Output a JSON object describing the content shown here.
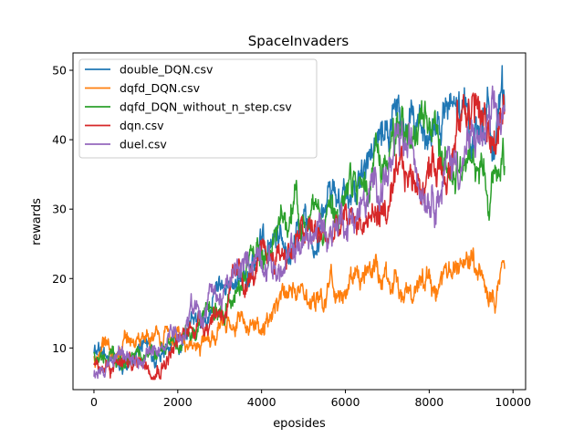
{
  "chart_data": {
    "type": "line",
    "title": "SpaceInvaders",
    "xlabel": "eposides",
    "ylabel": "rewards",
    "xlim": [
      -500,
      10300
    ],
    "ylim": [
      4,
      52.5
    ],
    "xticks": [
      "0",
      "2000",
      "4000",
      "6000",
      "8000",
      "10000"
    ],
    "yticks": [
      "10",
      "20",
      "30",
      "40",
      "50"
    ],
    "xtick_values": [
      0,
      2000,
      4000,
      6000,
      8000,
      10000
    ],
    "ytick_values": [
      10,
      20,
      30,
      40,
      50
    ],
    "grid": false,
    "legend_position": "top-left",
    "x": [
      0,
      500,
      1000,
      1500,
      2000,
      2500,
      3000,
      3500,
      4000,
      4500,
      5000,
      5500,
      6000,
      6500,
      7000,
      7500,
      8000,
      8500,
      9000,
      9500,
      9800
    ],
    "series": [
      {
        "name": "double_DQN.csv",
        "color": "#1f77b4",
        "values": [
          9.0,
          8.5,
          9.5,
          9.0,
          10.0,
          14.0,
          15.5,
          20.0,
          23.0,
          25.0,
          28.0,
          30.0,
          33.0,
          36.0,
          40.0,
          40.0,
          42.0,
          43.0,
          41.0,
          44.0,
          45.0
        ]
      },
      {
        "name": "dqfd_DQN.csv",
        "color": "#ff7f0e",
        "values": [
          9.0,
          9.5,
          11.0,
          11.5,
          12.0,
          10.5,
          11.5,
          14.0,
          14.5,
          15.5,
          17.5,
          18.5,
          20.5,
          20.5,
          20.0,
          19.5,
          21.5,
          20.0,
          21.0,
          21.5,
          20.5
        ]
      },
      {
        "name": "dqfd_DQN_without_n_step.csv",
        "color": "#2ca02c",
        "values": [
          9.5,
          8.5,
          8.0,
          9.5,
          10.5,
          13.5,
          16.0,
          19.5,
          24.0,
          27.0,
          29.0,
          30.0,
          31.0,
          33.0,
          37.0,
          38.0,
          40.0,
          37.0,
          35.0,
          36.0,
          38.5
        ]
      },
      {
        "name": "dqn.csv",
        "color": "#d62728",
        "values": [
          7.0,
          8.0,
          8.0,
          8.5,
          10.5,
          14.0,
          16.0,
          19.0,
          21.0,
          24.0,
          26.0,
          25.5,
          27.0,
          29.0,
          30.0,
          33.0,
          36.0,
          40.0,
          46.0,
          40.0,
          44.0
        ]
      },
      {
        "name": "duel.csv",
        "color": "#9467bd",
        "values": [
          6.5,
          8.0,
          8.5,
          9.0,
          11.0,
          15.0,
          17.0,
          20.0,
          25.0,
          21.0,
          25.0,
          27.0,
          29.5,
          30.5,
          36.0,
          37.0,
          36.0,
          37.0,
          39.0,
          40.0,
          41.0
        ]
      }
    ]
  }
}
